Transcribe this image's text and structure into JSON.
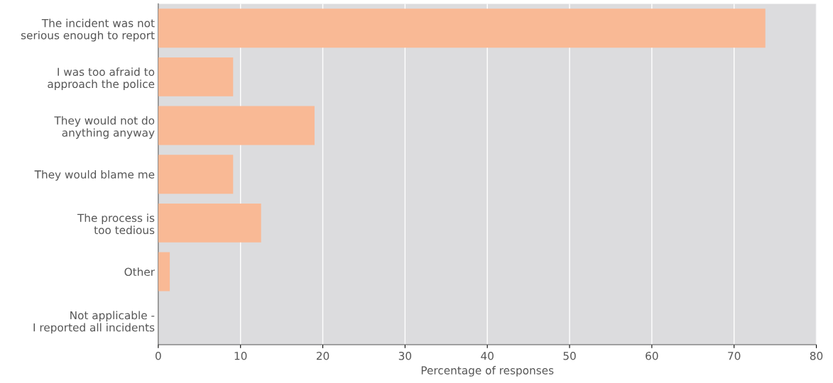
{
  "chart_data": {
    "type": "bar",
    "orientation": "horizontal",
    "xlabel": "Percentage of responses",
    "categories": [
      "The incident was not\nserious enough to report",
      "I was too afraid to\napproach the police",
      "They would not do\nanything anyway",
      "They would blame me",
      "The process is\ntoo tedious",
      "Other",
      "Not applicable -\nI reported all incidents"
    ],
    "values": [
      73.8,
      9.1,
      19,
      9.1,
      12.5,
      1.4,
      0
    ],
    "color": "#f9b995",
    "xlim": [
      0,
      80
    ],
    "xticks": [
      0,
      10,
      20,
      30,
      40,
      50,
      60,
      70,
      80
    ],
    "grid": "x"
  }
}
